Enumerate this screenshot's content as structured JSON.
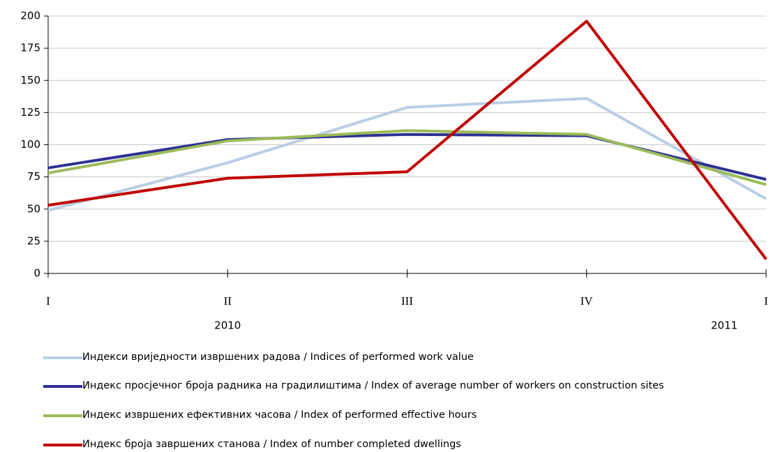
{
  "chart_data": {
    "type": "line",
    "categories": [
      "I",
      "II",
      "III",
      "IV",
      "I"
    ],
    "year_labels": [
      "2010",
      "2011"
    ],
    "series": [
      {
        "name": "Индекси вриједности извршених радова / Indices of performed work value",
        "color": "#b9cde5",
        "values": [
          49,
          86,
          129,
          136,
          58
        ]
      },
      {
        "name": "Индекс просјечног броја радника на градилиштима / Index of average number of workers on construction sites",
        "color": "#2e3192",
        "values": [
          82,
          104,
          108,
          107,
          73
        ]
      },
      {
        "name": "Индекс извршених ефективних часова / Index of performed effective hours",
        "color": "#9bbb59",
        "values": [
          78,
          103,
          111,
          108,
          69
        ]
      },
      {
        "name": "Индекс броја завршених станова / Index of number completed dwellings",
        "color": "#c00000",
        "values": [
          53,
          74,
          79,
          196,
          11
        ]
      }
    ],
    "ylim": [
      0,
      200
    ],
    "yticks": [
      0,
      25,
      50,
      75,
      100,
      125,
      150,
      175,
      200
    ],
    "grid": true
  }
}
